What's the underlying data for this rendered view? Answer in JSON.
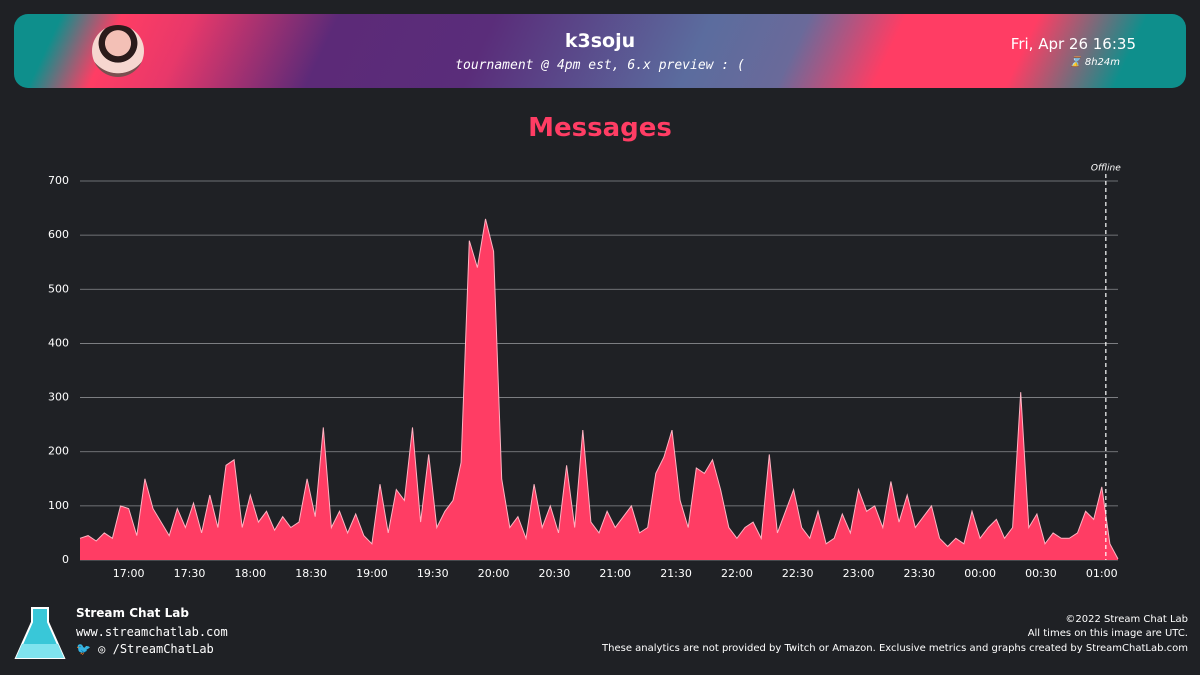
{
  "header": {
    "name": "k3soju",
    "subtitle": "tournament @ 4pm est, 6.x preview : (",
    "date": "Fri, Apr 26 16:35",
    "duration": "8h24m"
  },
  "chart_data": {
    "type": "area",
    "title": "Messages",
    "color": "#ff3d64",
    "line_color": "#ffb3c2",
    "x": [
      "16:36",
      "16:40",
      "16:44",
      "16:48",
      "16:52",
      "16:56",
      "17:00",
      "17:04",
      "17:08",
      "17:12",
      "17:16",
      "17:20",
      "17:24",
      "17:28",
      "17:32",
      "17:36",
      "17:40",
      "17:44",
      "17:48",
      "17:52",
      "17:56",
      "18:00",
      "18:04",
      "18:08",
      "18:12",
      "18:16",
      "18:20",
      "18:24",
      "18:28",
      "18:32",
      "18:36",
      "18:40",
      "18:44",
      "18:48",
      "18:52",
      "18:56",
      "19:00",
      "19:04",
      "19:08",
      "19:12",
      "19:16",
      "19:20",
      "19:24",
      "19:28",
      "19:32",
      "19:36",
      "19:40",
      "19:44",
      "19:48",
      "19:52",
      "19:56",
      "20:00",
      "20:04",
      "20:08",
      "20:12",
      "20:16",
      "20:20",
      "20:24",
      "20:28",
      "20:32",
      "20:36",
      "20:40",
      "20:44",
      "20:48",
      "20:52",
      "20:56",
      "21:00",
      "21:04",
      "21:08",
      "21:12",
      "21:16",
      "21:20",
      "21:24",
      "21:28",
      "21:32",
      "21:36",
      "21:40",
      "21:44",
      "21:48",
      "21:52",
      "21:56",
      "22:00",
      "22:04",
      "22:08",
      "22:12",
      "22:16",
      "22:20",
      "22:24",
      "22:28",
      "22:32",
      "22:36",
      "22:40",
      "22:44",
      "22:48",
      "22:52",
      "22:56",
      "23:00",
      "23:04",
      "23:08",
      "23:12",
      "23:16",
      "23:20",
      "23:24",
      "23:28",
      "23:32",
      "23:36",
      "23:40",
      "23:44",
      "23:48",
      "23:52",
      "23:56",
      "00:00",
      "00:04",
      "00:08",
      "00:12",
      "00:16",
      "00:20",
      "00:24",
      "00:28",
      "00:32",
      "00:36",
      "00:40",
      "00:44",
      "00:48",
      "00:52",
      "00:56",
      "01:00",
      "01:04",
      "01:08"
    ],
    "values": [
      40,
      45,
      35,
      50,
      40,
      100,
      95,
      45,
      150,
      95,
      70,
      45,
      95,
      60,
      105,
      50,
      120,
      60,
      175,
      185,
      60,
      120,
      70,
      90,
      55,
      80,
      60,
      70,
      150,
      80,
      245,
      60,
      90,
      50,
      85,
      45,
      30,
      140,
      50,
      130,
      110,
      245,
      70,
      195,
      60,
      90,
      110,
      180,
      590,
      540,
      630,
      570,
      150,
      60,
      80,
      40,
      140,
      60,
      100,
      50,
      175,
      60,
      240,
      70,
      50,
      90,
      60,
      80,
      100,
      50,
      60,
      160,
      190,
      240,
      110,
      60,
      170,
      160,
      185,
      130,
      60,
      40,
      60,
      70,
      40,
      195,
      50,
      90,
      130,
      60,
      40,
      90,
      30,
      40,
      85,
      50,
      130,
      90,
      100,
      60,
      145,
      70,
      120,
      60,
      80,
      100,
      40,
      25,
      40,
      30,
      90,
      40,
      60,
      75,
      40,
      60,
      310,
      60,
      85,
      30,
      50,
      40,
      40,
      50,
      90,
      75,
      135,
      30,
      2
    ],
    "xlim": [
      "16:36",
      "01:08"
    ],
    "xticks": [
      "17:00",
      "17:30",
      "18:00",
      "18:30",
      "19:00",
      "19:30",
      "20:00",
      "20:30",
      "21:00",
      "21:30",
      "22:00",
      "22:30",
      "23:00",
      "23:30",
      "00:00",
      "00:30",
      "01:00"
    ],
    "ylim": [
      0,
      700
    ],
    "yticks": [
      0,
      100,
      200,
      300,
      400,
      500,
      600,
      700
    ],
    "grid": true,
    "annotations": [
      {
        "x": "01:02",
        "text": "Offline"
      }
    ]
  },
  "footer": {
    "brand": "Stream Chat Lab",
    "url": "www.streamchatlab.com",
    "social": "/StreamChatLab",
    "copyright": "©2022 Stream Chat Lab",
    "timezone": "All times on this image are UTC.",
    "disclaimer": "These analytics are not provided by Twitch or Amazon. Exclusive metrics and graphs created by StreamChatLab.com"
  }
}
